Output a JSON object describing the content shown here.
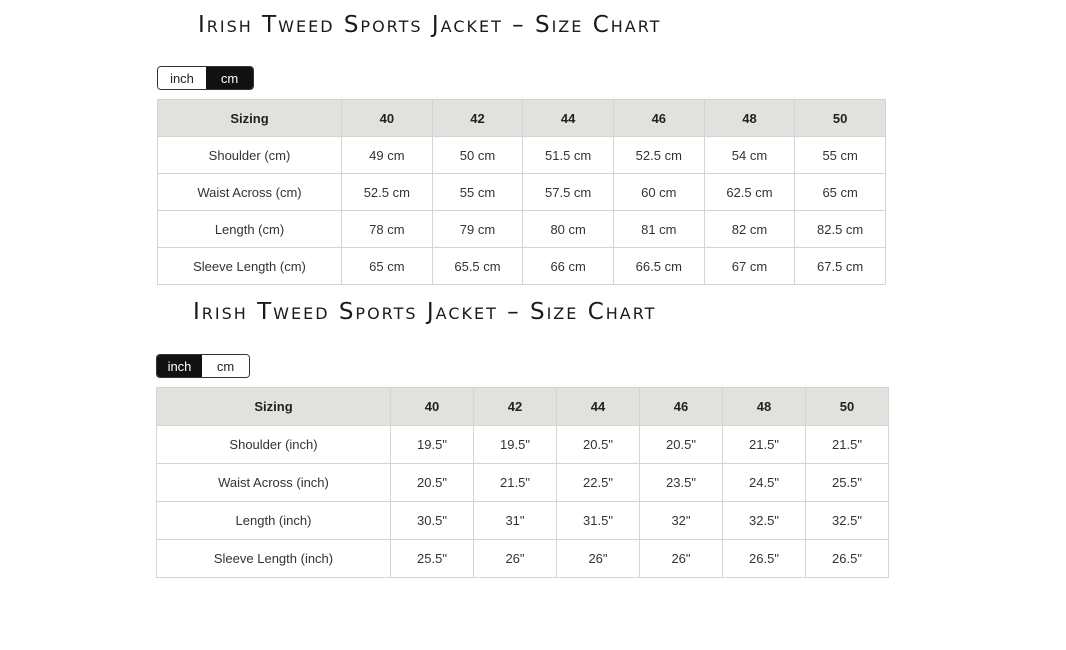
{
  "charts": [
    {
      "title": "Irish Tweed Sports Jacket – Size Chart",
      "units": [
        {
          "label": "inch",
          "active": false
        },
        {
          "label": "cm",
          "active": true
        }
      ],
      "headers": [
        "Sizing",
        "40",
        "42",
        "44",
        "46",
        "48",
        "50"
      ],
      "rows": [
        [
          "Shoulder (cm)",
          "49 cm",
          "50 cm",
          "51.5 cm",
          "52.5 cm",
          "54 cm",
          "55 cm"
        ],
        [
          "Waist Across (cm)",
          "52.5 cm",
          "55 cm",
          "57.5 cm",
          "60 cm",
          "62.5 cm",
          "65 cm"
        ],
        [
          "Length (cm)",
          "78 cm",
          "79 cm",
          "80 cm",
          "81 cm",
          "82 cm",
          "82.5 cm"
        ],
        [
          "Sleeve Length (cm)",
          "65 cm",
          "65.5 cm",
          "66 cm",
          "66.5 cm",
          "67 cm",
          "67.5 cm"
        ]
      ]
    },
    {
      "title": "Irish Tweed Sports Jacket – Size Chart",
      "units": [
        {
          "label": "inch",
          "active": true
        },
        {
          "label": "cm",
          "active": false
        }
      ],
      "headers": [
        "Sizing",
        "40",
        "42",
        "44",
        "46",
        "48",
        "50"
      ],
      "rows": [
        [
          "Shoulder (inch)",
          "19.5\"",
          "19.5\"",
          "20.5\"",
          "20.5\"",
          "21.5\"",
          "21.5\""
        ],
        [
          "Waist Across (inch)",
          "20.5\"",
          "21.5\"",
          "22.5\"",
          "23.5\"",
          "24.5\"",
          "25.5\""
        ],
        [
          "Length (inch)",
          "30.5\"",
          "31\"",
          "31.5\"",
          "32\"",
          "32.5\"",
          "32.5\""
        ],
        [
          "Sleeve Length (inch)",
          "25.5\"",
          "26\"",
          "26\"",
          "26\"",
          "26.5\"",
          "26.5\""
        ]
      ]
    }
  ]
}
